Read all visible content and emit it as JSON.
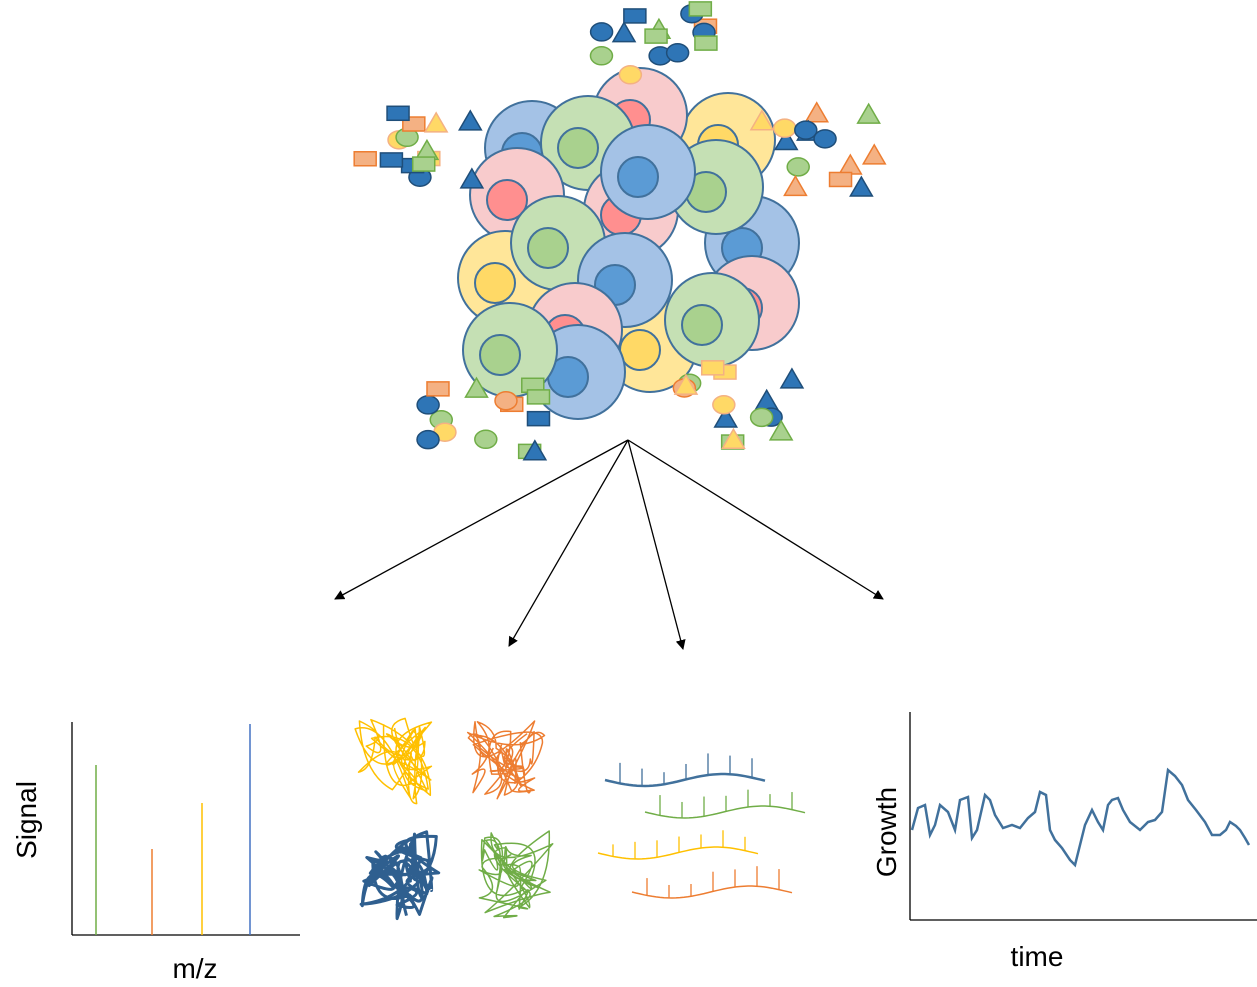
{
  "spectrum": {
    "y_label": "Signal",
    "x_label": "m/z"
  },
  "growth_curve": {
    "y_label": "Growth",
    "x_label": "time"
  }
}
